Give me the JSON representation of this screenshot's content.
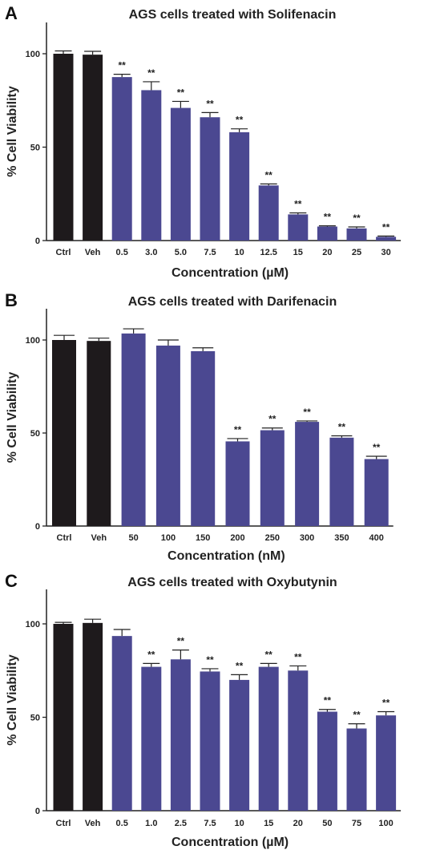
{
  "colors": {
    "control": "#1e1a1c",
    "treated": "#4b4891",
    "axis": "#222222"
  },
  "chart_data": [
    {
      "type": "bar",
      "panel": "A",
      "title": "AGS cells treated with Solifenacin",
      "xlabel": "Concentration (µM)",
      "ylabel": "% Cell Viability",
      "ylim": [
        0,
        110
      ],
      "yticks": [
        0,
        50,
        100
      ],
      "grid": false,
      "categories": [
        "Ctrl",
        "Veh",
        "0.5",
        "3.0",
        "5.0",
        "7.5",
        "10",
        "12.5",
        "15",
        "20",
        "25",
        "30"
      ],
      "values": [
        100,
        99.5,
        87.5,
        80.5,
        71,
        66,
        58,
        29.5,
        14,
        7.5,
        6.5,
        2
      ],
      "errors": [
        1.5,
        1.8,
        1.5,
        4.5,
        3.5,
        2.5,
        1.8,
        0.8,
        0.8,
        0.4,
        0.8,
        0.4
      ],
      "significance": [
        "",
        "",
        "**",
        "**",
        "**",
        "**",
        "**",
        "**",
        "**",
        "**",
        "**",
        "**"
      ]
    },
    {
      "type": "bar",
      "panel": "B",
      "title": "AGS cells treated with Darifenacin",
      "xlabel": "Concentration (nM)",
      "ylabel": "% Cell Viability",
      "ylim": [
        0,
        120
      ],
      "yticks": [
        0,
        50,
        100
      ],
      "grid": false,
      "categories": [
        "Ctrl",
        "Veh",
        "50",
        "100",
        "150",
        "200",
        "250",
        "300",
        "350",
        "400"
      ],
      "values": [
        100,
        99.5,
        103.5,
        97,
        94,
        45.5,
        51.5,
        56,
        47.5,
        36
      ],
      "errors": [
        2.5,
        1.5,
        2.5,
        3.0,
        1.8,
        1.5,
        1.2,
        0.5,
        1.0,
        1.5
      ],
      "significance": [
        "",
        "",
        "",
        "",
        "",
        "**",
        "**",
        "**",
        "**",
        "**"
      ]
    },
    {
      "type": "bar",
      "panel": "C",
      "title": "AGS cells treated with Oxybutynin",
      "xlabel": "Concentration (µM)",
      "ylabel": "% Cell Viability",
      "ylim": [
        0,
        112
      ],
      "yticks": [
        0,
        50,
        100
      ],
      "grid": false,
      "categories": [
        "Ctrl",
        "Veh",
        "0.5",
        "1.0",
        "2.5",
        "7.5",
        "10",
        "15",
        "20",
        "50",
        "75",
        "100"
      ],
      "values": [
        100,
        100.5,
        93.5,
        77,
        81,
        74.5,
        70,
        77,
        75,
        53,
        44,
        51
      ],
      "errors": [
        0.8,
        2.0,
        3.5,
        1.8,
        5.0,
        1.5,
        2.8,
        1.8,
        2.5,
        1.2,
        2.5,
        2.0
      ],
      "significance": [
        "",
        "",
        "",
        "**",
        "**",
        "**",
        "**",
        "**",
        "**",
        "**",
        "**",
        "**"
      ]
    }
  ]
}
